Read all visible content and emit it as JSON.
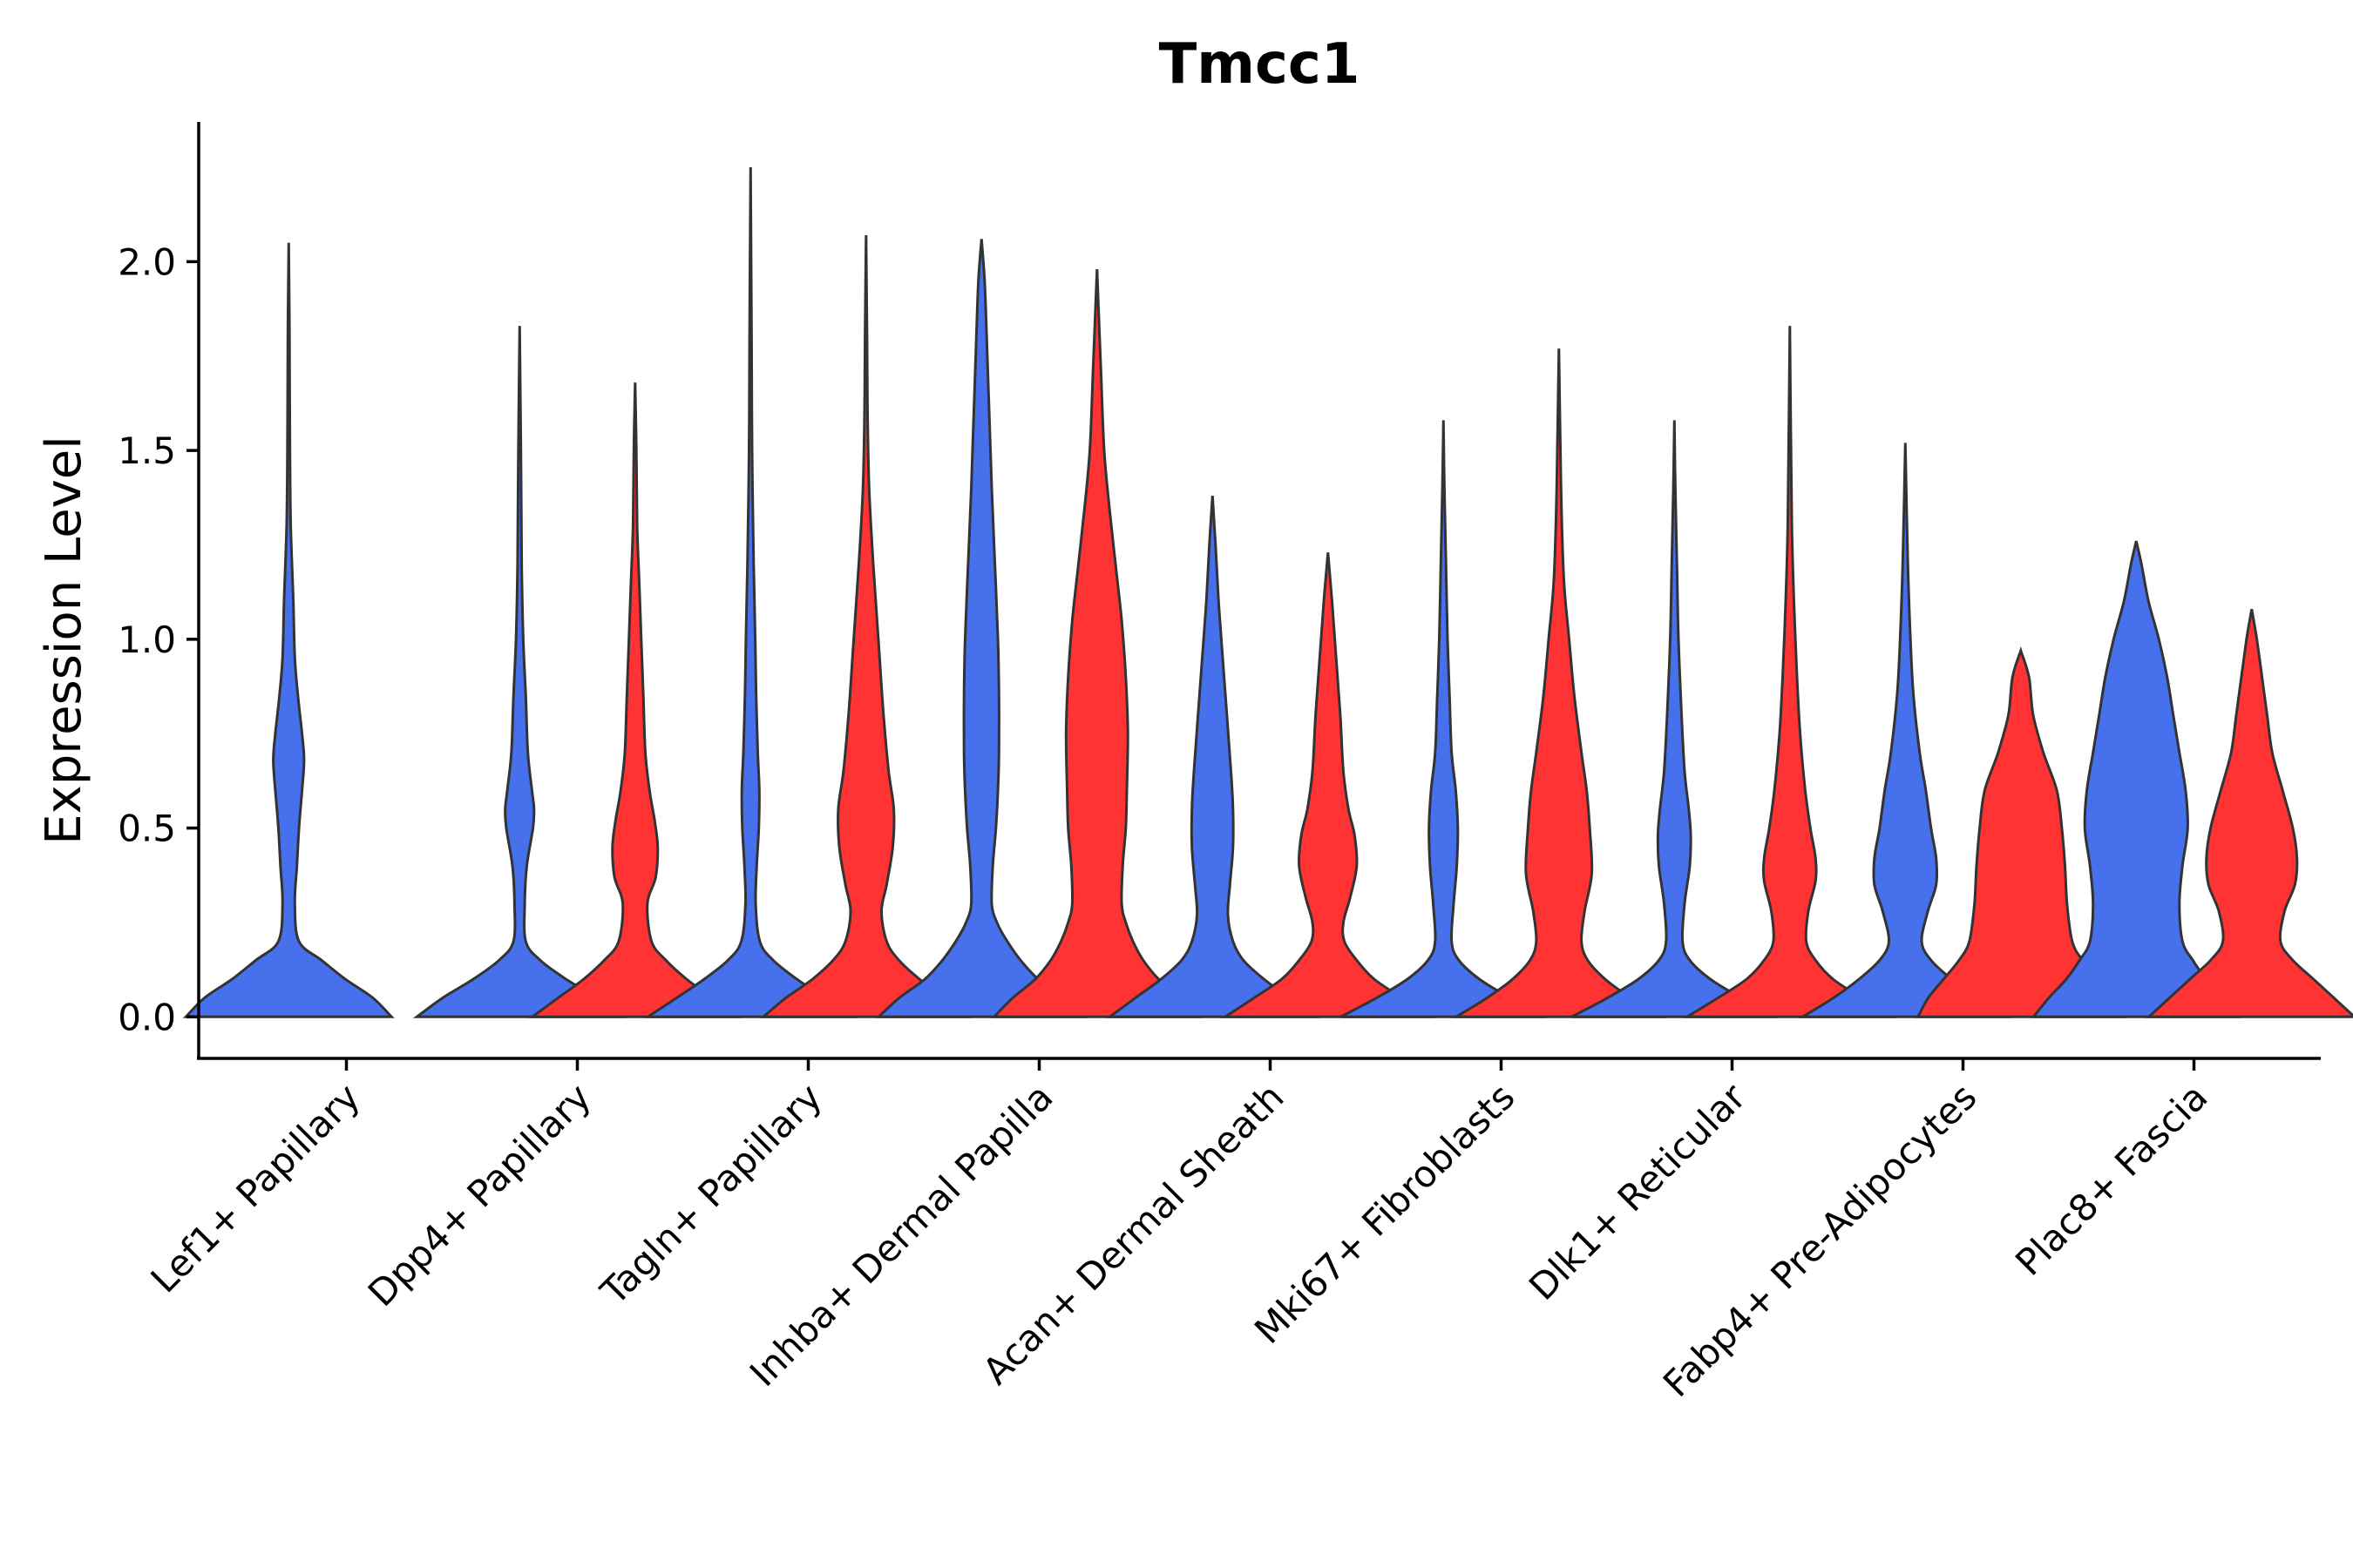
{
  "chart_data": {
    "type": "violin",
    "title": "Tmcc1",
    "xlabel": "",
    "ylabel": "Expression Level",
    "ylim": [
      -0.11,
      2.37
    ],
    "yticks": [
      0.0,
      0.5,
      1.0,
      1.5,
      2.0
    ],
    "ytick_labels": [
      "0.0",
      "0.5",
      "1.0",
      "1.5",
      "2.0"
    ],
    "grid": false,
    "legend": "none",
    "colors": {
      "blue": "#4670EC",
      "red": "#FF3333"
    },
    "categories": [
      "Lef1+ Papillary",
      "Dpp4+ Papillary",
      "Tagln+ Papillary",
      "Inhba+ Dermal Papilla",
      "Acan+ Dermal Sheath",
      "Mki67+ Fibroblasts",
      "Dlk1+ Reticular",
      "Fabp4+ Pre-Adipocytes",
      "Plac8+ Fascia"
    ],
    "violins": [
      {
        "category": "Lef1+ Papillary",
        "color": "blue",
        "max": 2.05,
        "profile": [
          [
            0,
            1.0
          ],
          [
            0.05,
            0.82
          ],
          [
            0.1,
            0.55
          ],
          [
            0.15,
            0.32
          ],
          [
            0.2,
            0.1
          ],
          [
            0.3,
            0.06
          ],
          [
            0.4,
            0.08
          ],
          [
            0.5,
            0.1
          ],
          [
            0.6,
            0.13
          ],
          [
            0.68,
            0.15
          ],
          [
            0.75,
            0.13
          ],
          [
            0.85,
            0.09
          ],
          [
            0.95,
            0.06
          ],
          [
            1.1,
            0.045
          ],
          [
            1.3,
            0.02
          ],
          [
            1.5,
            0.012
          ],
          [
            1.8,
            0.008
          ],
          [
            2.05,
            0.0
          ]
        ]
      },
      {
        "category": "Dpp4+ Papillary",
        "color": "blue",
        "max": 1.83,
        "profile": [
          [
            0,
            1.0
          ],
          [
            0.05,
            0.75
          ],
          [
            0.1,
            0.45
          ],
          [
            0.15,
            0.2
          ],
          [
            0.2,
            0.06
          ],
          [
            0.3,
            0.05
          ],
          [
            0.4,
            0.07
          ],
          [
            0.5,
            0.13
          ],
          [
            0.55,
            0.14
          ],
          [
            0.6,
            0.12
          ],
          [
            0.7,
            0.08
          ],
          [
            0.85,
            0.06
          ],
          [
            1.0,
            0.035
          ],
          [
            1.2,
            0.02
          ],
          [
            1.5,
            0.012
          ],
          [
            1.83,
            0.0
          ]
        ]
      },
      {
        "category": "Dpp4+ Papillary",
        "color": "red",
        "max": 1.68,
        "profile": [
          [
            0,
            1.0
          ],
          [
            0.05,
            0.75
          ],
          [
            0.1,
            0.5
          ],
          [
            0.15,
            0.3
          ],
          [
            0.2,
            0.16
          ],
          [
            0.3,
            0.12
          ],
          [
            0.37,
            0.2
          ],
          [
            0.45,
            0.22
          ],
          [
            0.52,
            0.19
          ],
          [
            0.6,
            0.14
          ],
          [
            0.7,
            0.1
          ],
          [
            0.85,
            0.08
          ],
          [
            1.0,
            0.06
          ],
          [
            1.15,
            0.04
          ],
          [
            1.3,
            0.02
          ],
          [
            1.5,
            0.012
          ],
          [
            1.68,
            0.0
          ]
        ]
      },
      {
        "category": "Tagln+ Papillary",
        "color": "blue",
        "max": 2.25,
        "profile": [
          [
            0,
            1.0
          ],
          [
            0.05,
            0.72
          ],
          [
            0.1,
            0.45
          ],
          [
            0.15,
            0.22
          ],
          [
            0.2,
            0.09
          ],
          [
            0.3,
            0.05
          ],
          [
            0.4,
            0.06
          ],
          [
            0.5,
            0.08
          ],
          [
            0.6,
            0.085
          ],
          [
            0.7,
            0.07
          ],
          [
            0.85,
            0.055
          ],
          [
            1.0,
            0.045
          ],
          [
            1.2,
            0.03
          ],
          [
            1.5,
            0.015
          ],
          [
            1.8,
            0.01
          ],
          [
            2.25,
            0.0
          ]
        ]
      },
      {
        "category": "Tagln+ Papillary",
        "color": "red",
        "max": 2.07,
        "profile": [
          [
            0,
            1.0
          ],
          [
            0.05,
            0.78
          ],
          [
            0.1,
            0.52
          ],
          [
            0.15,
            0.32
          ],
          [
            0.2,
            0.2
          ],
          [
            0.28,
            0.15
          ],
          [
            0.35,
            0.2
          ],
          [
            0.45,
            0.26
          ],
          [
            0.55,
            0.27
          ],
          [
            0.65,
            0.22
          ],
          [
            0.8,
            0.17
          ],
          [
            1.0,
            0.12
          ],
          [
            1.2,
            0.07
          ],
          [
            1.4,
            0.03
          ],
          [
            1.6,
            0.015
          ],
          [
            1.8,
            0.01
          ],
          [
            2.07,
            0.0
          ]
        ]
      },
      {
        "category": "Inhba+ Dermal Papilla",
        "color": "blue",
        "max": 2.06,
        "profile": [
          [
            0,
            1.0
          ],
          [
            0.05,
            0.8
          ],
          [
            0.1,
            0.55
          ],
          [
            0.15,
            0.38
          ],
          [
            0.2,
            0.25
          ],
          [
            0.25,
            0.15
          ],
          [
            0.3,
            0.1
          ],
          [
            0.4,
            0.11
          ],
          [
            0.5,
            0.14
          ],
          [
            0.6,
            0.16
          ],
          [
            0.7,
            0.17
          ],
          [
            0.85,
            0.17
          ],
          [
            1.0,
            0.16
          ],
          [
            1.2,
            0.13
          ],
          [
            1.4,
            0.1
          ],
          [
            1.6,
            0.075
          ],
          [
            1.8,
            0.05
          ],
          [
            1.95,
            0.03
          ],
          [
            2.06,
            0.0
          ]
        ]
      },
      {
        "category": "Inhba+ Dermal Papilla",
        "color": "red",
        "max": 1.98,
        "profile": [
          [
            0,
            1.0
          ],
          [
            0.05,
            0.82
          ],
          [
            0.1,
            0.6
          ],
          [
            0.15,
            0.45
          ],
          [
            0.2,
            0.35
          ],
          [
            0.25,
            0.28
          ],
          [
            0.3,
            0.24
          ],
          [
            0.4,
            0.25
          ],
          [
            0.5,
            0.28
          ],
          [
            0.6,
            0.29
          ],
          [
            0.75,
            0.3
          ],
          [
            0.9,
            0.28
          ],
          [
            1.05,
            0.24
          ],
          [
            1.2,
            0.18
          ],
          [
            1.35,
            0.12
          ],
          [
            1.5,
            0.07
          ],
          [
            1.7,
            0.04
          ],
          [
            1.98,
            0.0
          ]
        ]
      },
      {
        "category": "Acan+ Dermal Sheath",
        "color": "blue",
        "max": 1.38,
        "profile": [
          [
            0,
            1.0
          ],
          [
            0.05,
            0.75
          ],
          [
            0.1,
            0.5
          ],
          [
            0.15,
            0.3
          ],
          [
            0.2,
            0.2
          ],
          [
            0.27,
            0.15
          ],
          [
            0.35,
            0.17
          ],
          [
            0.45,
            0.2
          ],
          [
            0.55,
            0.2
          ],
          [
            0.65,
            0.18
          ],
          [
            0.8,
            0.14
          ],
          [
            0.95,
            0.1
          ],
          [
            1.1,
            0.06
          ],
          [
            1.25,
            0.03
          ],
          [
            1.38,
            0.0
          ]
        ]
      },
      {
        "category": "Acan+ Dermal Sheath",
        "color": "red",
        "max": 1.23,
        "profile": [
          [
            0,
            1.0
          ],
          [
            0.05,
            0.72
          ],
          [
            0.1,
            0.45
          ],
          [
            0.15,
            0.28
          ],
          [
            0.2,
            0.16
          ],
          [
            0.25,
            0.15
          ],
          [
            0.32,
            0.22
          ],
          [
            0.4,
            0.28
          ],
          [
            0.48,
            0.26
          ],
          [
            0.55,
            0.2
          ],
          [
            0.65,
            0.15
          ],
          [
            0.8,
            0.12
          ],
          [
            0.95,
            0.08
          ],
          [
            1.1,
            0.04
          ],
          [
            1.23,
            0.0
          ]
        ]
      },
      {
        "category": "Mki67+ Fibroblasts",
        "color": "blue",
        "max": 1.58,
        "profile": [
          [
            0,
            1.0
          ],
          [
            0.05,
            0.65
          ],
          [
            0.1,
            0.35
          ],
          [
            0.15,
            0.15
          ],
          [
            0.2,
            0.08
          ],
          [
            0.3,
            0.1
          ],
          [
            0.4,
            0.13
          ],
          [
            0.5,
            0.14
          ],
          [
            0.6,
            0.12
          ],
          [
            0.7,
            0.08
          ],
          [
            0.85,
            0.06
          ],
          [
            1.0,
            0.04
          ],
          [
            1.2,
            0.025
          ],
          [
            1.4,
            0.01
          ],
          [
            1.58,
            0.0
          ]
        ]
      },
      {
        "category": "Mki67+ Fibroblasts",
        "color": "red",
        "max": 1.77,
        "profile": [
          [
            0,
            1.0
          ],
          [
            0.05,
            0.7
          ],
          [
            0.1,
            0.45
          ],
          [
            0.15,
            0.28
          ],
          [
            0.2,
            0.22
          ],
          [
            0.28,
            0.25
          ],
          [
            0.38,
            0.32
          ],
          [
            0.5,
            0.3
          ],
          [
            0.6,
            0.27
          ],
          [
            0.7,
            0.22
          ],
          [
            0.85,
            0.15
          ],
          [
            1.0,
            0.1
          ],
          [
            1.15,
            0.05
          ],
          [
            1.35,
            0.025
          ],
          [
            1.55,
            0.012
          ],
          [
            1.77,
            0.0
          ]
        ]
      },
      {
        "category": "Dlk1+ Reticular",
        "color": "blue",
        "max": 1.58,
        "profile": [
          [
            0,
            1.0
          ],
          [
            0.05,
            0.65
          ],
          [
            0.1,
            0.35
          ],
          [
            0.15,
            0.15
          ],
          [
            0.2,
            0.08
          ],
          [
            0.3,
            0.1
          ],
          [
            0.4,
            0.15
          ],
          [
            0.48,
            0.16
          ],
          [
            0.55,
            0.14
          ],
          [
            0.65,
            0.1
          ],
          [
            0.8,
            0.07
          ],
          [
            1.0,
            0.04
          ],
          [
            1.2,
            0.025
          ],
          [
            1.4,
            0.01
          ],
          [
            1.58,
            0.0
          ]
        ]
      },
      {
        "category": "Dlk1+ Reticular",
        "color": "red",
        "max": 1.83,
        "profile": [
          [
            0,
            1.0
          ],
          [
            0.05,
            0.7
          ],
          [
            0.1,
            0.42
          ],
          [
            0.15,
            0.25
          ],
          [
            0.2,
            0.16
          ],
          [
            0.28,
            0.18
          ],
          [
            0.36,
            0.25
          ],
          [
            0.42,
            0.25
          ],
          [
            0.5,
            0.2
          ],
          [
            0.6,
            0.15
          ],
          [
            0.75,
            0.1
          ],
          [
            0.9,
            0.07
          ],
          [
            1.1,
            0.04
          ],
          [
            1.3,
            0.02
          ],
          [
            1.55,
            0.01
          ],
          [
            1.83,
            0.0
          ]
        ]
      },
      {
        "category": "Fabp4+ Pre-Adipocytes",
        "color": "blue",
        "max": 1.52,
        "profile": [
          [
            0,
            1.0
          ],
          [
            0.05,
            0.7
          ],
          [
            0.1,
            0.45
          ],
          [
            0.15,
            0.25
          ],
          [
            0.2,
            0.16
          ],
          [
            0.28,
            0.22
          ],
          [
            0.35,
            0.3
          ],
          [
            0.42,
            0.3
          ],
          [
            0.5,
            0.25
          ],
          [
            0.6,
            0.2
          ],
          [
            0.7,
            0.14
          ],
          [
            0.85,
            0.08
          ],
          [
            1.0,
            0.05
          ],
          [
            1.2,
            0.025
          ],
          [
            1.52,
            0.0
          ]
        ]
      },
      {
        "category": "Fabp4+ Pre-Adipocytes",
        "color": "red",
        "max": 0.97,
        "profile": [
          [
            0,
            1.0
          ],
          [
            0.05,
            0.9
          ],
          [
            0.1,
            0.75
          ],
          [
            0.15,
            0.6
          ],
          [
            0.2,
            0.5
          ],
          [
            0.3,
            0.45
          ],
          [
            0.4,
            0.43
          ],
          [
            0.5,
            0.4
          ],
          [
            0.6,
            0.35
          ],
          [
            0.7,
            0.22
          ],
          [
            0.8,
            0.12
          ],
          [
            0.9,
            0.08
          ],
          [
            0.97,
            0.0
          ]
        ]
      },
      {
        "category": "Plac8+ Fascia",
        "color": "blue",
        "max": 1.26,
        "profile": [
          [
            0,
            1.0
          ],
          [
            0.05,
            0.85
          ],
          [
            0.1,
            0.68
          ],
          [
            0.15,
            0.55
          ],
          [
            0.2,
            0.45
          ],
          [
            0.3,
            0.42
          ],
          [
            0.4,
            0.45
          ],
          [
            0.5,
            0.5
          ],
          [
            0.6,
            0.48
          ],
          [
            0.7,
            0.42
          ],
          [
            0.8,
            0.36
          ],
          [
            0.9,
            0.3
          ],
          [
            1.0,
            0.22
          ],
          [
            1.1,
            0.12
          ],
          [
            1.2,
            0.05
          ],
          [
            1.26,
            0.0
          ]
        ]
      },
      {
        "category": "Plac8+ Fascia",
        "color": "red",
        "max": 1.08,
        "profile": [
          [
            0,
            1.0
          ],
          [
            0.05,
            0.8
          ],
          [
            0.1,
            0.6
          ],
          [
            0.15,
            0.4
          ],
          [
            0.2,
            0.28
          ],
          [
            0.28,
            0.32
          ],
          [
            0.35,
            0.42
          ],
          [
            0.42,
            0.44
          ],
          [
            0.5,
            0.4
          ],
          [
            0.6,
            0.3
          ],
          [
            0.7,
            0.2
          ],
          [
            0.8,
            0.15
          ],
          [
            0.9,
            0.1
          ],
          [
            1.0,
            0.05
          ],
          [
            1.08,
            0.0
          ]
        ]
      }
    ]
  }
}
